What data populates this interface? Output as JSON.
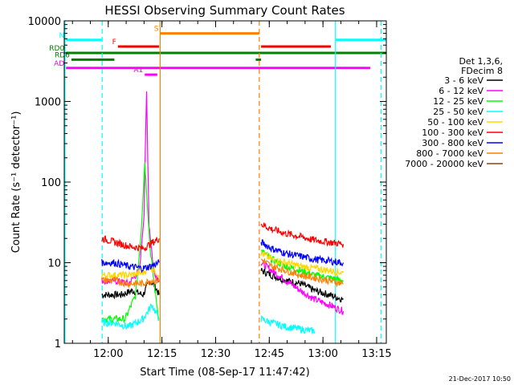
{
  "chart_data": {
    "type": "line",
    "title": "HESSI Observing Summary Count Rates",
    "xlabel": "Start Time (08-Sep-17 11:47:42)",
    "ylabel": "Count Rate (s⁻¹ detector⁻¹)",
    "yscale": "log",
    "ylim": [
      1,
      10000
    ],
    "xlim_minutes_from_start": [
      0,
      90
    ],
    "x_ticks": [
      {
        "minute": 12.3,
        "label": "12:00"
      },
      {
        "minute": 27.3,
        "label": "12:15"
      },
      {
        "minute": 42.3,
        "label": "12:30"
      },
      {
        "minute": 57.3,
        "label": "12:45"
      },
      {
        "minute": 72.3,
        "label": "13:00"
      },
      {
        "minute": 87.3,
        "label": "13:15"
      }
    ],
    "y_ticks": [
      {
        "value": 1,
        "label": "1"
      },
      {
        "value": 10,
        "label": "10"
      },
      {
        "value": 100,
        "label": "100"
      },
      {
        "value": 1000,
        "label": "1000"
      },
      {
        "value": 10000,
        "label": "10000"
      }
    ],
    "legend": {
      "placement": "right",
      "header": [
        "Det 1,3,6,",
        "FDecim 8"
      ],
      "entries": [
        {
          "label": "3 - 6 keV",
          "color": "#000000"
        },
        {
          "label": "6 - 12 keV",
          "color": "#ff00ff"
        },
        {
          "label": "12 - 25 keV",
          "color": "#00ff00"
        },
        {
          "label": "25 - 50 keV",
          "color": "#00ffff"
        },
        {
          "label": "50 - 100 keV",
          "color": "#ffd700"
        },
        {
          "label": "100 - 300 keV",
          "color": "#ff0000"
        },
        {
          "label": "300 - 800 keV",
          "color": "#0000ff"
        },
        {
          "label": "800 - 7000 keV",
          "color": "#ff8000"
        },
        {
          "label": "7000 - 20000 keV",
          "color": "#8b4513"
        }
      ]
    },
    "series": [
      {
        "name": "3 - 6 keV",
        "color": "#000000",
        "segments": [
          {
            "x": [
              10.5,
              13,
              16,
              19,
              22,
              24,
              25.5,
              26.5
            ],
            "y": [
              4,
              4,
              4,
              4.5,
              4,
              6,
              5,
              4
            ]
          },
          {
            "x": [
              55,
              58,
              62,
              66,
              70,
              74,
              78
            ],
            "y": [
              8,
              7,
              6,
              5.5,
              4.5,
              4,
              3.5
            ]
          }
        ]
      },
      {
        "name": "6 - 12 keV",
        "color": "#ff00ff",
        "segments": [
          {
            "x": [
              10.5,
              14,
              18,
              21,
              22.3,
              23,
              23.7,
              25,
              26.5
            ],
            "y": [
              6,
              6,
              5.5,
              8,
              40,
              1300,
              30,
              8,
              6
            ]
          },
          {
            "x": [
              55,
              58,
              62,
              66,
              70,
              74,
              78
            ],
            "y": [
              10,
              8,
              6,
              4.5,
              3.5,
              3,
              2.5
            ]
          }
        ]
      },
      {
        "name": "12 - 25 keV",
        "color": "#00ff00",
        "segments": [
          {
            "x": [
              10.5,
              14,
              17,
              20,
              21.5,
              22.5,
              24,
              25.5,
              26.5
            ],
            "y": [
              2,
              2,
              2,
              4,
              25,
              180,
              15,
              4,
              2
            ]
          },
          {
            "x": [
              55,
              58,
              62,
              66,
              70,
              74,
              78
            ],
            "y": [
              14,
              11,
              9,
              8,
              7,
              6.5,
              6
            ]
          }
        ]
      },
      {
        "name": "25 - 50 keV",
        "color": "#00ffff",
        "segments": [
          {
            "x": [
              10.5,
              14,
              18,
              22,
              24.5,
              26.5
            ],
            "y": [
              1.8,
              1.8,
              1.6,
              2,
              3,
              2
            ]
          },
          {
            "x": [
              55,
              58,
              62,
              66,
              70
            ],
            "y": [
              2,
              1.8,
              1.6,
              1.5,
              1.4
            ]
          }
        ]
      },
      {
        "name": "50 - 100 keV",
        "color": "#ffd700",
        "segments": [
          {
            "x": [
              10.5,
              14,
              18,
              22,
              24,
              26.5
            ],
            "y": [
              7,
              7,
              7,
              7.5,
              9,
              7
            ]
          },
          {
            "x": [
              55,
              58,
              62,
              66,
              70,
              74,
              78
            ],
            "y": [
              13,
              11,
              10,
              9,
              8.5,
              8,
              7.5
            ]
          }
        ]
      },
      {
        "name": "100 - 300 keV",
        "color": "#ff0000",
        "segments": [
          {
            "x": [
              10.5,
              14,
              18,
              22,
              24,
              26.5
            ],
            "y": [
              20,
              18,
              16,
              15,
              17,
              20
            ]
          },
          {
            "x": [
              55,
              58,
              62,
              66,
              70,
              74,
              78
            ],
            "y": [
              30,
              26,
              23,
              21,
              19,
              18,
              17
            ]
          }
        ]
      },
      {
        "name": "300 - 800 keV",
        "color": "#0000ff",
        "segments": [
          {
            "x": [
              10.5,
              14,
              18,
              22,
              24,
              26.5
            ],
            "y": [
              10,
              10,
              9,
              8.5,
              9,
              10
            ]
          },
          {
            "x": [
              55,
              58,
              62,
              66,
              70,
              74,
              78
            ],
            "y": [
              18,
              15,
              13,
              12,
              11,
              10.5,
              10
            ]
          }
        ]
      },
      {
        "name": "800 - 7000 keV",
        "color": "#ff8000",
        "segments": [
          {
            "x": [
              10.5,
              14,
              18,
              22,
              24,
              26.5
            ],
            "y": [
              6,
              6,
              5.5,
              5.5,
              6,
              6
            ]
          },
          {
            "x": [
              55,
              58,
              62,
              66,
              70,
              74,
              78
            ],
            "y": [
              11,
              9,
              8,
              7,
              6.5,
              6,
              5.5
            ]
          }
        ]
      }
    ],
    "vertical_markers": [
      {
        "minute": 0.2,
        "color": "#00ffff",
        "style": "solid"
      },
      {
        "minute": 10.6,
        "color": "#00ffff",
        "style": "dashed"
      },
      {
        "minute": 26.8,
        "color": "#ff8000",
        "style": "solid"
      },
      {
        "minute": 54.5,
        "color": "#ff8000",
        "style": "dashed"
      },
      {
        "minute": 75.8,
        "color": "#00ffff",
        "style": "solid"
      },
      {
        "minute": 88.5,
        "color": "#00ffff",
        "style": "dashed"
      }
    ],
    "flag_bars": [
      {
        "label": "N",
        "color": "#00ffff",
        "y": 5800,
        "segments": [
          [
            0.5,
            10.5
          ],
          [
            75.8,
            90
          ]
        ]
      },
      {
        "label": "S",
        "color": "#ff8000",
        "y": 7000,
        "segments": [
          [
            26.8,
            54.5
          ]
        ]
      },
      {
        "label": "F",
        "color": "#ff0000",
        "y": 4800,
        "segments": [
          [
            15,
            26.5
          ],
          [
            55,
            74.5
          ]
        ]
      },
      {
        "label": "RD0",
        "color": "#008000",
        "y": 4000,
        "segments": [
          [
            0.5,
            90
          ]
        ]
      },
      {
        "label": "RD6",
        "color": "#008000",
        "y": 3300,
        "segments": [
          [
            2,
            14
          ],
          [
            53.5,
            55
          ]
        ]
      },
      {
        "label": "AD",
        "color": "#ff00ff",
        "y": 2600,
        "segments": [
          [
            0.5,
            85.5
          ]
        ]
      },
      {
        "label": "A1",
        "color": "#ff00ff",
        "y": 2150,
        "segments": [
          [
            22.5,
            26
          ]
        ]
      }
    ]
  },
  "footer": {
    "date_stamp": "21-Dec-2017 10:50"
  }
}
